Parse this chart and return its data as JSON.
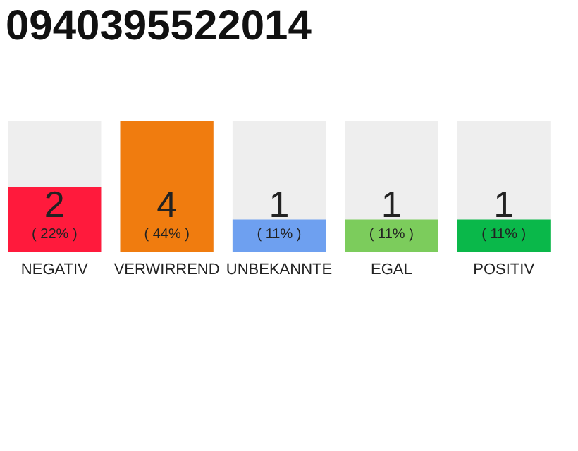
{
  "chart_data": {
    "type": "bar",
    "title": "0940395522014",
    "categories": [
      "NEGATIV",
      "VERWIRREND",
      "UNBEKANNTE",
      "EGAL",
      "POSITIV"
    ],
    "values": [
      2,
      4,
      1,
      1,
      1
    ],
    "colors": [
      "#ff1a3c",
      "#f07c0f",
      "#6ea0f0",
      "#7ccc5c",
      "#0ab84a"
    ],
    "data_labels": true,
    "annotations": [
      "( 22% )",
      "( 44% )",
      "( 11% )",
      "( 11% )",
      "( 11% )"
    ]
  }
}
